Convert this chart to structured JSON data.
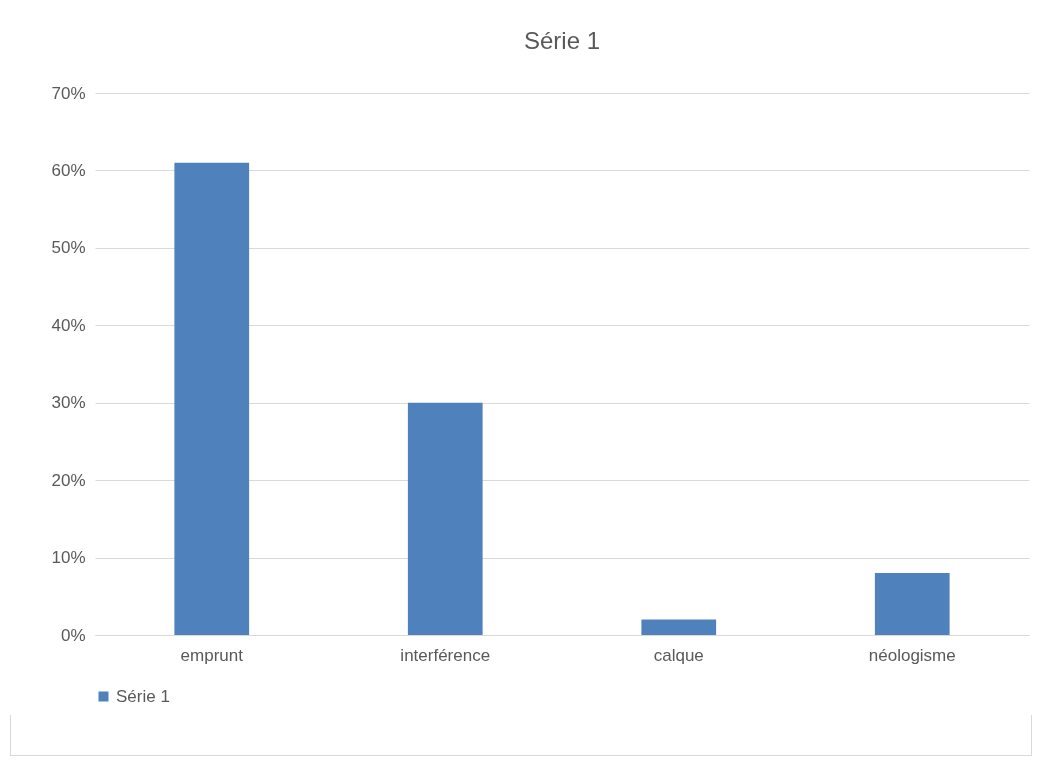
{
  "chart_data": {
    "type": "bar",
    "title": "Série 1",
    "categories": [
      "emprunt",
      "interférence",
      "calque",
      "néologisme"
    ],
    "series": [
      {
        "name": "Série 1",
        "color": "#4f81bd",
        "values": [
          61,
          30,
          2,
          8
        ]
      }
    ],
    "ylim": [
      0,
      70
    ],
    "yticks": [
      {
        "value": 0,
        "label": "0%"
      },
      {
        "value": 10,
        "label": "10%"
      },
      {
        "value": 20,
        "label": "20%"
      },
      {
        "value": 30,
        "label": "30%"
      },
      {
        "value": 40,
        "label": "40%"
      },
      {
        "value": 50,
        "label": "50%"
      },
      {
        "value": 60,
        "label": "60%"
      },
      {
        "value": 70,
        "label": "70%"
      }
    ],
    "grid": "y",
    "legend": "bottom"
  }
}
